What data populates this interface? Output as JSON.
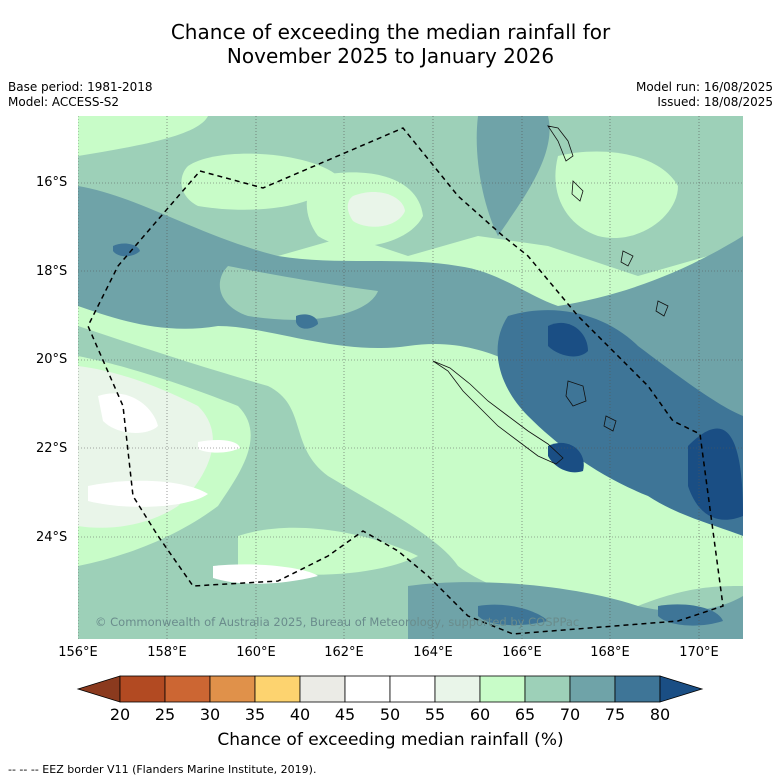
{
  "title_line1": "Chance of exceeding the median rainfall for",
  "title_line2": "November 2025 to January 2026",
  "base_period": "Base period: 1981-2018",
  "model": "Model: ACCESS-S2",
  "model_run": "Model run: 16/08/2025",
  "issued": "Issued: 18/08/2025",
  "copyright": "© Commonwealth of Australia 2025, Bureau of Meteorology, supported by COSPPac",
  "lat_labels": [
    "16°S",
    "18°S",
    "20°S",
    "22°S",
    "24°S"
  ],
  "lon_labels": [
    "156°E",
    "158°E",
    "160°E",
    "162°E",
    "164°E",
    "166°E",
    "168°E",
    "170°E"
  ],
  "colorbar": {
    "ticks": [
      "20",
      "25",
      "30",
      "35",
      "40",
      "45",
      "50",
      "55",
      "60",
      "65",
      "70",
      "75",
      "80"
    ],
    "colors": [
      "#8b3a1e",
      "#b24a22",
      "#cc6633",
      "#e0914a",
      "#fdd36f",
      "#ebebe6",
      "#ffffff",
      "#ffffff",
      "#e9f5e9",
      "#c8fcc8",
      "#9dd0b8",
      "#6fa3a8",
      "#3e7597",
      "#1a4e84"
    ],
    "label": "Chance of exceeding median rainfall (%)"
  },
  "footer": "-- -- -- EEZ border V11 (Flanders Marine Institute, 2019)."
}
